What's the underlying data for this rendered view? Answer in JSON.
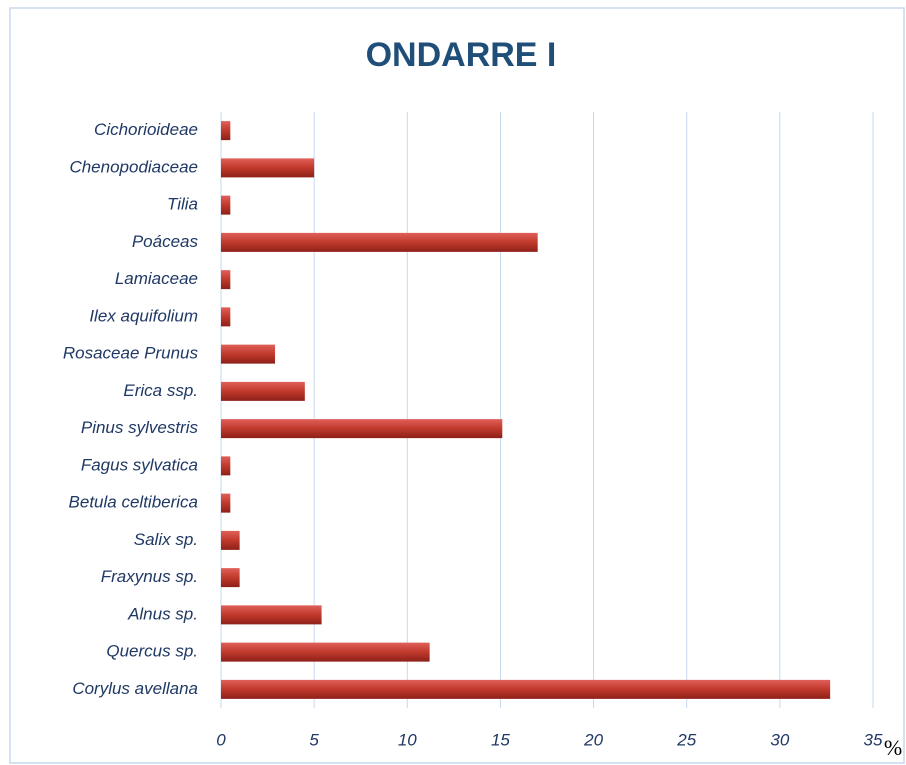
{
  "chart_data": {
    "type": "bar",
    "orientation": "horizontal",
    "title": "ONDARRE I",
    "x_label": "%",
    "categories": [
      "Cichorioideae",
      "Chenopodiaceae",
      "Tilia",
      "Poáceas",
      "Lamiaceae",
      "Ilex aquifolium",
      "Rosaceae Prunus",
      "Erica ssp.",
      "Pinus sylvestris",
      "Fagus sylvatica",
      "Betula celtiberica",
      "Salix sp.",
      "Fraxynus sp.",
      "Alnus sp.",
      "Quercus sp.",
      "Corylus avellana"
    ],
    "values": [
      0.5,
      5.0,
      0.5,
      17.0,
      0.5,
      0.5,
      2.9,
      4.5,
      15.1,
      0.5,
      0.5,
      1.0,
      1.0,
      5.4,
      11.2,
      32.7
    ],
    "color": "#c0392b",
    "xlim": [
      0,
      35
    ],
    "xticks": [
      0,
      5,
      10,
      15,
      20,
      25,
      30,
      35
    ],
    "grid": true
  }
}
